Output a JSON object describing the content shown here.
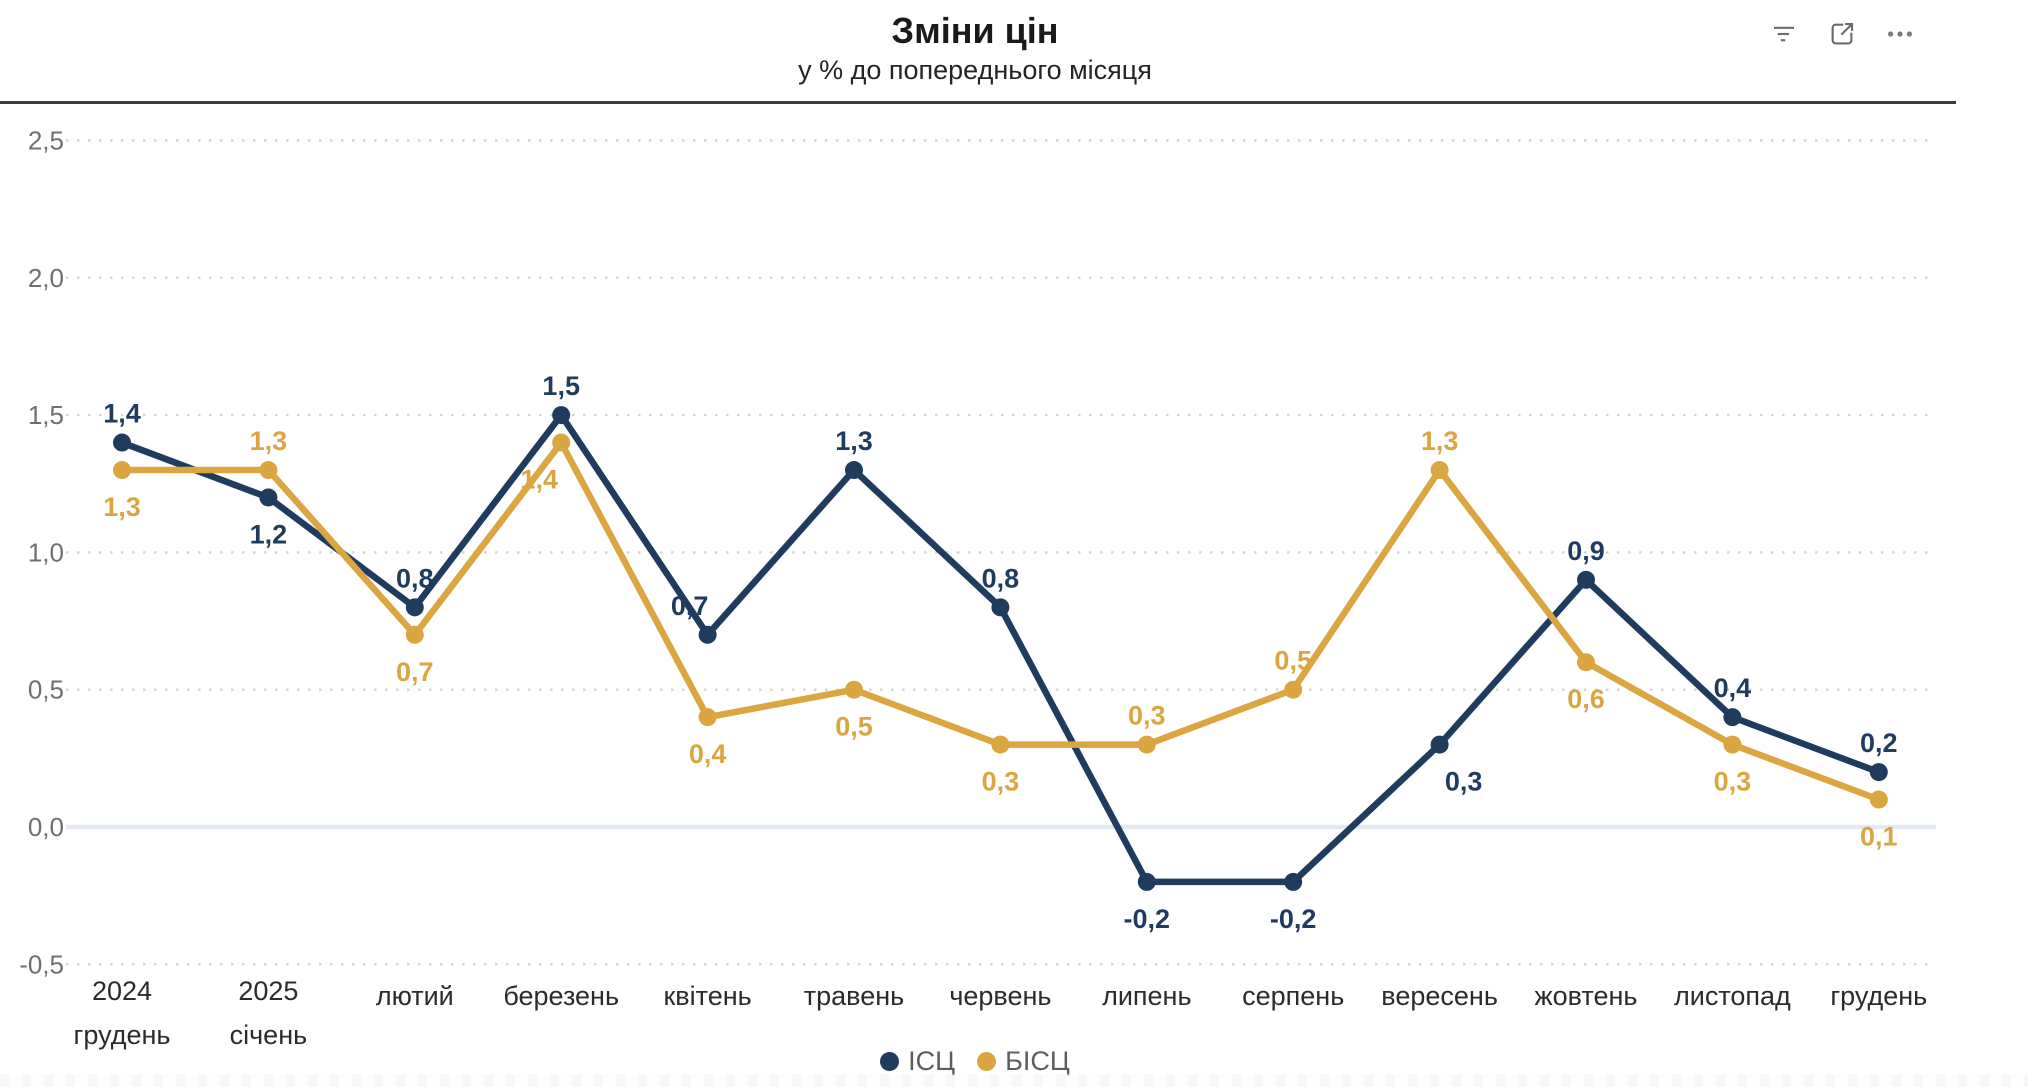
{
  "header": {
    "icons": [
      "filter-icon",
      "focus-mode-icon",
      "more-options-icon"
    ]
  },
  "chart_data": {
    "type": "line",
    "title": "Зміни цін",
    "subtitle": "у % до попереднього місяця",
    "categories": [
      {
        "line1": "2024",
        "line2": "грудень"
      },
      {
        "line1": "2025",
        "line2": "січень"
      },
      {
        "line1": "лютий",
        "line2": ""
      },
      {
        "line1": "березень",
        "line2": ""
      },
      {
        "line1": "квітень",
        "line2": ""
      },
      {
        "line1": "травень",
        "line2": ""
      },
      {
        "line1": "червень",
        "line2": ""
      },
      {
        "line1": "липень",
        "line2": ""
      },
      {
        "line1": "серпень",
        "line2": ""
      },
      {
        "line1": "вересень",
        "line2": ""
      },
      {
        "line1": "жовтень",
        "line2": ""
      },
      {
        "line1": "листопад",
        "line2": ""
      },
      {
        "line1": "грудень",
        "line2": ""
      }
    ],
    "series": [
      {
        "name": "ІСЦ",
        "color": "#1f3b5e",
        "values": [
          1.4,
          1.2,
          0.8,
          1.5,
          0.7,
          1.3,
          0.8,
          -0.2,
          -0.2,
          0.3,
          0.9,
          0.4,
          0.2
        ],
        "labels": [
          "1,4",
          "1,2",
          "0,8",
          "1,5",
          "0,7",
          "1,3",
          "0,8",
          "-0,2",
          "-0,2",
          "0,3",
          "0,9",
          "0,4",
          "0,2"
        ],
        "label_positions": [
          "above",
          "below",
          "above",
          "above",
          "above-left",
          "above",
          "above",
          "below",
          "below",
          "below-right",
          "above",
          "above",
          "above"
        ]
      },
      {
        "name": "БІСЦ",
        "color": "#dba642",
        "values": [
          1.3,
          1.3,
          0.7,
          1.4,
          0.4,
          0.5,
          0.3,
          0.3,
          0.5,
          1.3,
          0.6,
          0.3,
          0.1
        ],
        "labels": [
          "1,3",
          "1,3",
          "0,7",
          "1,4",
          "0,4",
          "0,5",
          "0,3",
          "0,3",
          "0,5",
          "1,3",
          "0,6",
          "0,3",
          "0,1"
        ],
        "label_positions": [
          "below",
          "above",
          "below",
          "below-left",
          "below",
          "below",
          "below",
          "above",
          "above",
          "above",
          "below",
          "below",
          "below"
        ]
      }
    ],
    "y_axis": {
      "min": -0.5,
      "max": 2.5,
      "step": 0.5,
      "tick_labels": [
        "2,5",
        "2,0",
        "1,5",
        "1,0",
        "0,5",
        "0,0",
        "-0,5"
      ]
    },
    "grid": "horizontal-dotted",
    "grid_color": "#d4d4d4",
    "zero_line_color": "#e3e9f1",
    "y_tick_color": "#6f6f6f",
    "x_tick_color": "#2b2b2b",
    "legend_position": "bottom-center",
    "last_label_bold": true
  }
}
